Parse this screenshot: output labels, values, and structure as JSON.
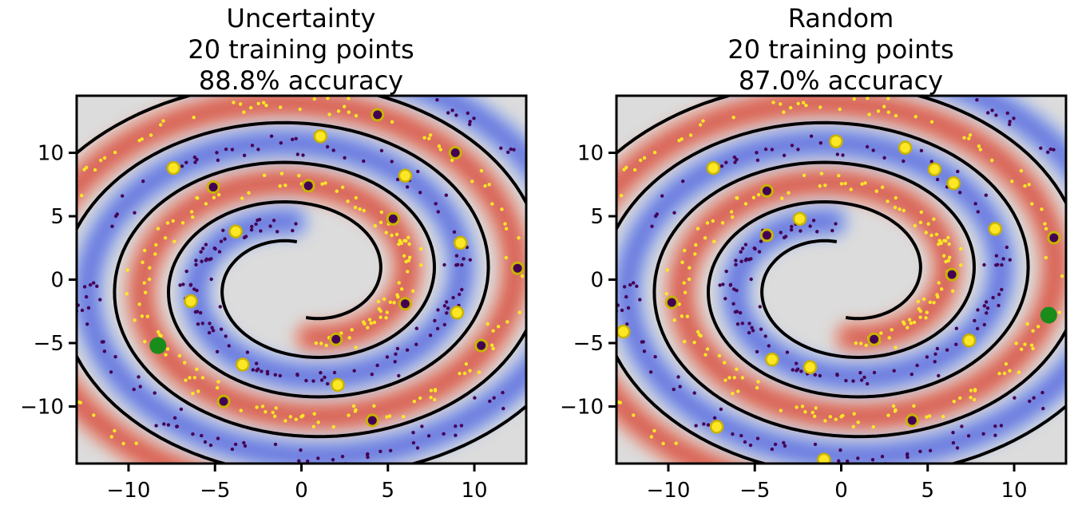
{
  "chart_data": [
    {
      "type": "scatter",
      "title_lines": [
        "Uncertainty",
        "20 training points",
        "88.8% accuracy"
      ],
      "xlim": [
        -13,
        13
      ],
      "ylim": [
        -14.5,
        14.5
      ],
      "xticks": [
        -10,
        -5,
        0,
        5,
        10
      ],
      "yticks": [
        10,
        5,
        0,
        -5,
        -10
      ],
      "xtick_labels": [
        "−10",
        "−5",
        "0",
        "5",
        "10"
      ],
      "ytick_labels": [
        "10",
        "5",
        "0",
        "−5",
        "−10"
      ],
      "labeled_points_class_a": [
        [
          1.1,
          11.3
        ],
        [
          -7.4,
          8.8
        ],
        [
          6.0,
          8.2
        ],
        [
          -3.8,
          3.8
        ],
        [
          9.2,
          2.9
        ],
        [
          -6.4,
          -1.7
        ],
        [
          9.0,
          -2.6
        ],
        [
          -3.4,
          -6.7
        ],
        [
          2.1,
          -8.3
        ]
      ],
      "labeled_points_class_b": [
        [
          4.4,
          13.0
        ],
        [
          8.9,
          10.0
        ],
        [
          -5.1,
          7.3
        ],
        [
          0.4,
          7.4
        ],
        [
          5.3,
          4.8
        ],
        [
          12.5,
          0.9
        ],
        [
          6.0,
          -1.9
        ],
        [
          2.0,
          -4.7
        ],
        [
          10.4,
          -5.2
        ],
        [
          -4.5,
          -9.6
        ],
        [
          4.1,
          -11.1
        ]
      ],
      "next_query_point": [
        -8.3,
        -5.2
      ],
      "colors": {
        "class_a": "#fde725",
        "class_b": "#440154",
        "next_query": "#1a8c1a",
        "marker_edge": "#c8b400",
        "background": "#dcdcdc",
        "boundary": "#000000"
      }
    },
    {
      "type": "scatter",
      "title_lines": [
        "Random",
        "20 training points",
        "87.0% accuracy"
      ],
      "xlim": [
        -13,
        13
      ],
      "ylim": [
        -14.5,
        14.5
      ],
      "xticks": [
        -10,
        -5,
        0,
        5,
        10
      ],
      "yticks": [
        10,
        5,
        0,
        -5,
        -10
      ],
      "xtick_labels": [
        "−10",
        "−5",
        "0",
        "5",
        "10"
      ],
      "ytick_labels": [
        "10",
        "5",
        "0",
        "−5",
        "−10"
      ],
      "labeled_points_class_a": [
        [
          -0.3,
          10.9
        ],
        [
          3.7,
          10.4
        ],
        [
          -7.4,
          8.8
        ],
        [
          5.4,
          8.7
        ],
        [
          6.5,
          7.6
        ],
        [
          -2.4,
          4.8
        ],
        [
          8.9,
          4.0
        ],
        [
          -12.6,
          -4.1
        ],
        [
          -4.0,
          -6.3
        ],
        [
          -1.8,
          -6.9
        ],
        [
          7.4,
          -4.8
        ],
        [
          -7.2,
          -11.6
        ],
        [
          -1.0,
          -14.2
        ]
      ],
      "labeled_points_class_b": [
        [
          -4.3,
          7.0
        ],
        [
          -4.3,
          3.5
        ],
        [
          6.4,
          0.4
        ],
        [
          -9.8,
          -1.8
        ],
        [
          1.9,
          -4.7
        ],
        [
          4.1,
          -11.1
        ],
        [
          12.3,
          3.3
        ]
      ],
      "next_query_point": [
        12.0,
        -2.8
      ],
      "colors": {
        "class_a": "#fde725",
        "class_b": "#440154",
        "next_query": "#1a8c1a",
        "marker_edge": "#c8b400",
        "background": "#dcdcdc",
        "boundary": "#000000"
      }
    }
  ]
}
